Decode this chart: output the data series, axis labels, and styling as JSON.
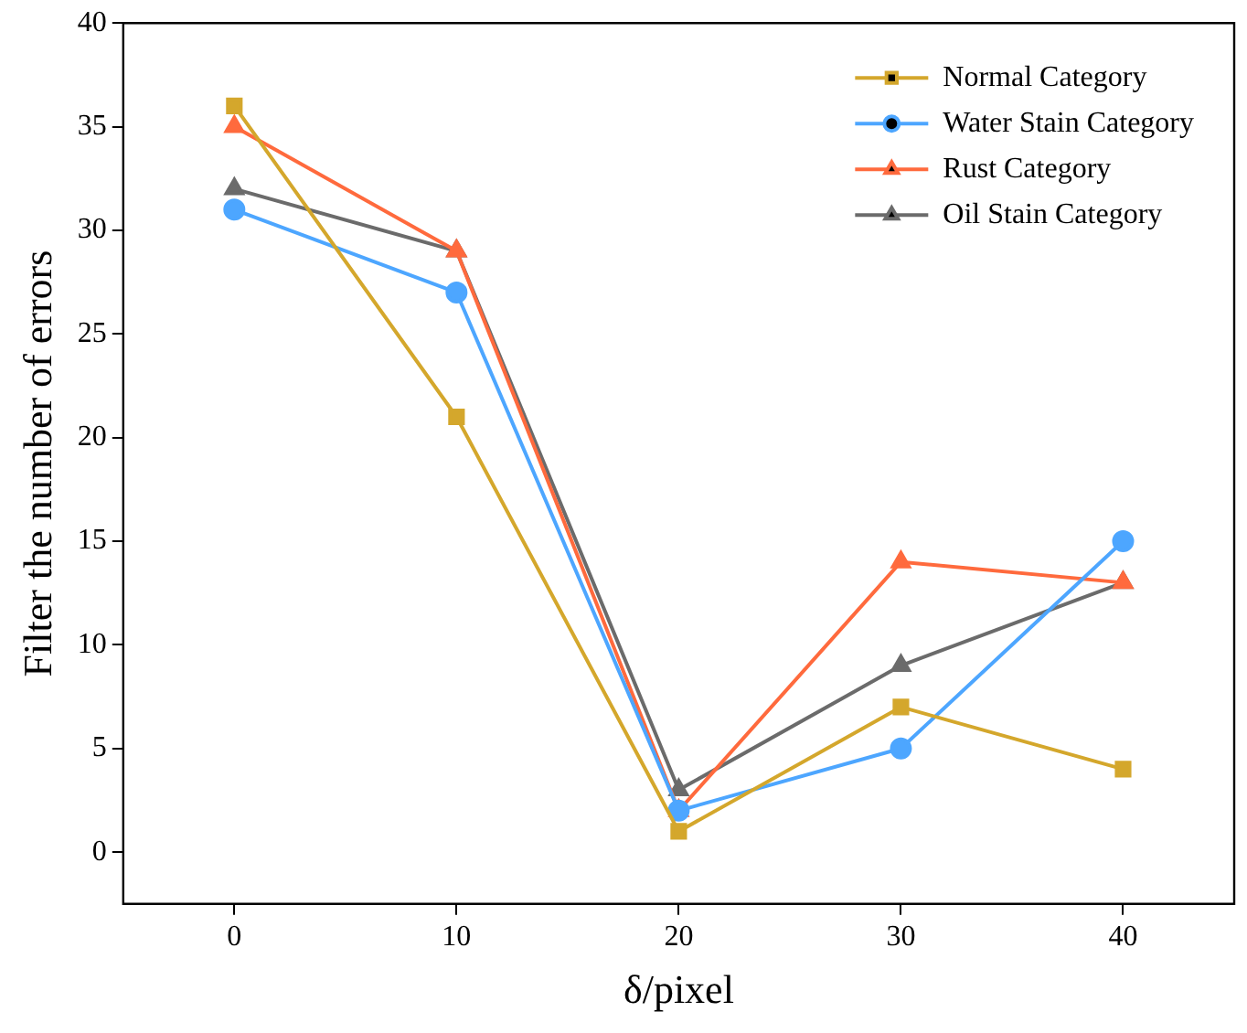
{
  "chart_data": {
    "type": "line",
    "xlabel": "δ/pixel",
    "ylabel": "Filter the number of errors",
    "x": [
      0,
      10,
      20,
      30,
      40
    ],
    "xlim": [
      -5,
      45
    ],
    "xticks": [
      0,
      10,
      20,
      30,
      40
    ],
    "ylim": [
      -2.5,
      40
    ],
    "yticks": [
      0,
      5,
      10,
      15,
      20,
      25,
      30,
      35,
      40
    ],
    "grid": false,
    "legend": "top right",
    "line_style": "solid",
    "series": [
      {
        "name": "Normal Category",
        "color": "#d4a72c",
        "marker": "square",
        "values": [
          36,
          21,
          1,
          7,
          4
        ]
      },
      {
        "name": "Water Stain Category",
        "color": "#4da6ff",
        "marker": "circle",
        "values": [
          31,
          27,
          2,
          5,
          15
        ]
      },
      {
        "name": "Rust Category",
        "color": "#ff6a3d",
        "marker": "triangle",
        "values": [
          35,
          29,
          2,
          14,
          13
        ]
      },
      {
        "name": "Oil Stain Category",
        "color": "#6b6b6b",
        "marker": "triangle",
        "values": [
          32,
          29,
          3,
          9,
          13
        ]
      }
    ]
  }
}
